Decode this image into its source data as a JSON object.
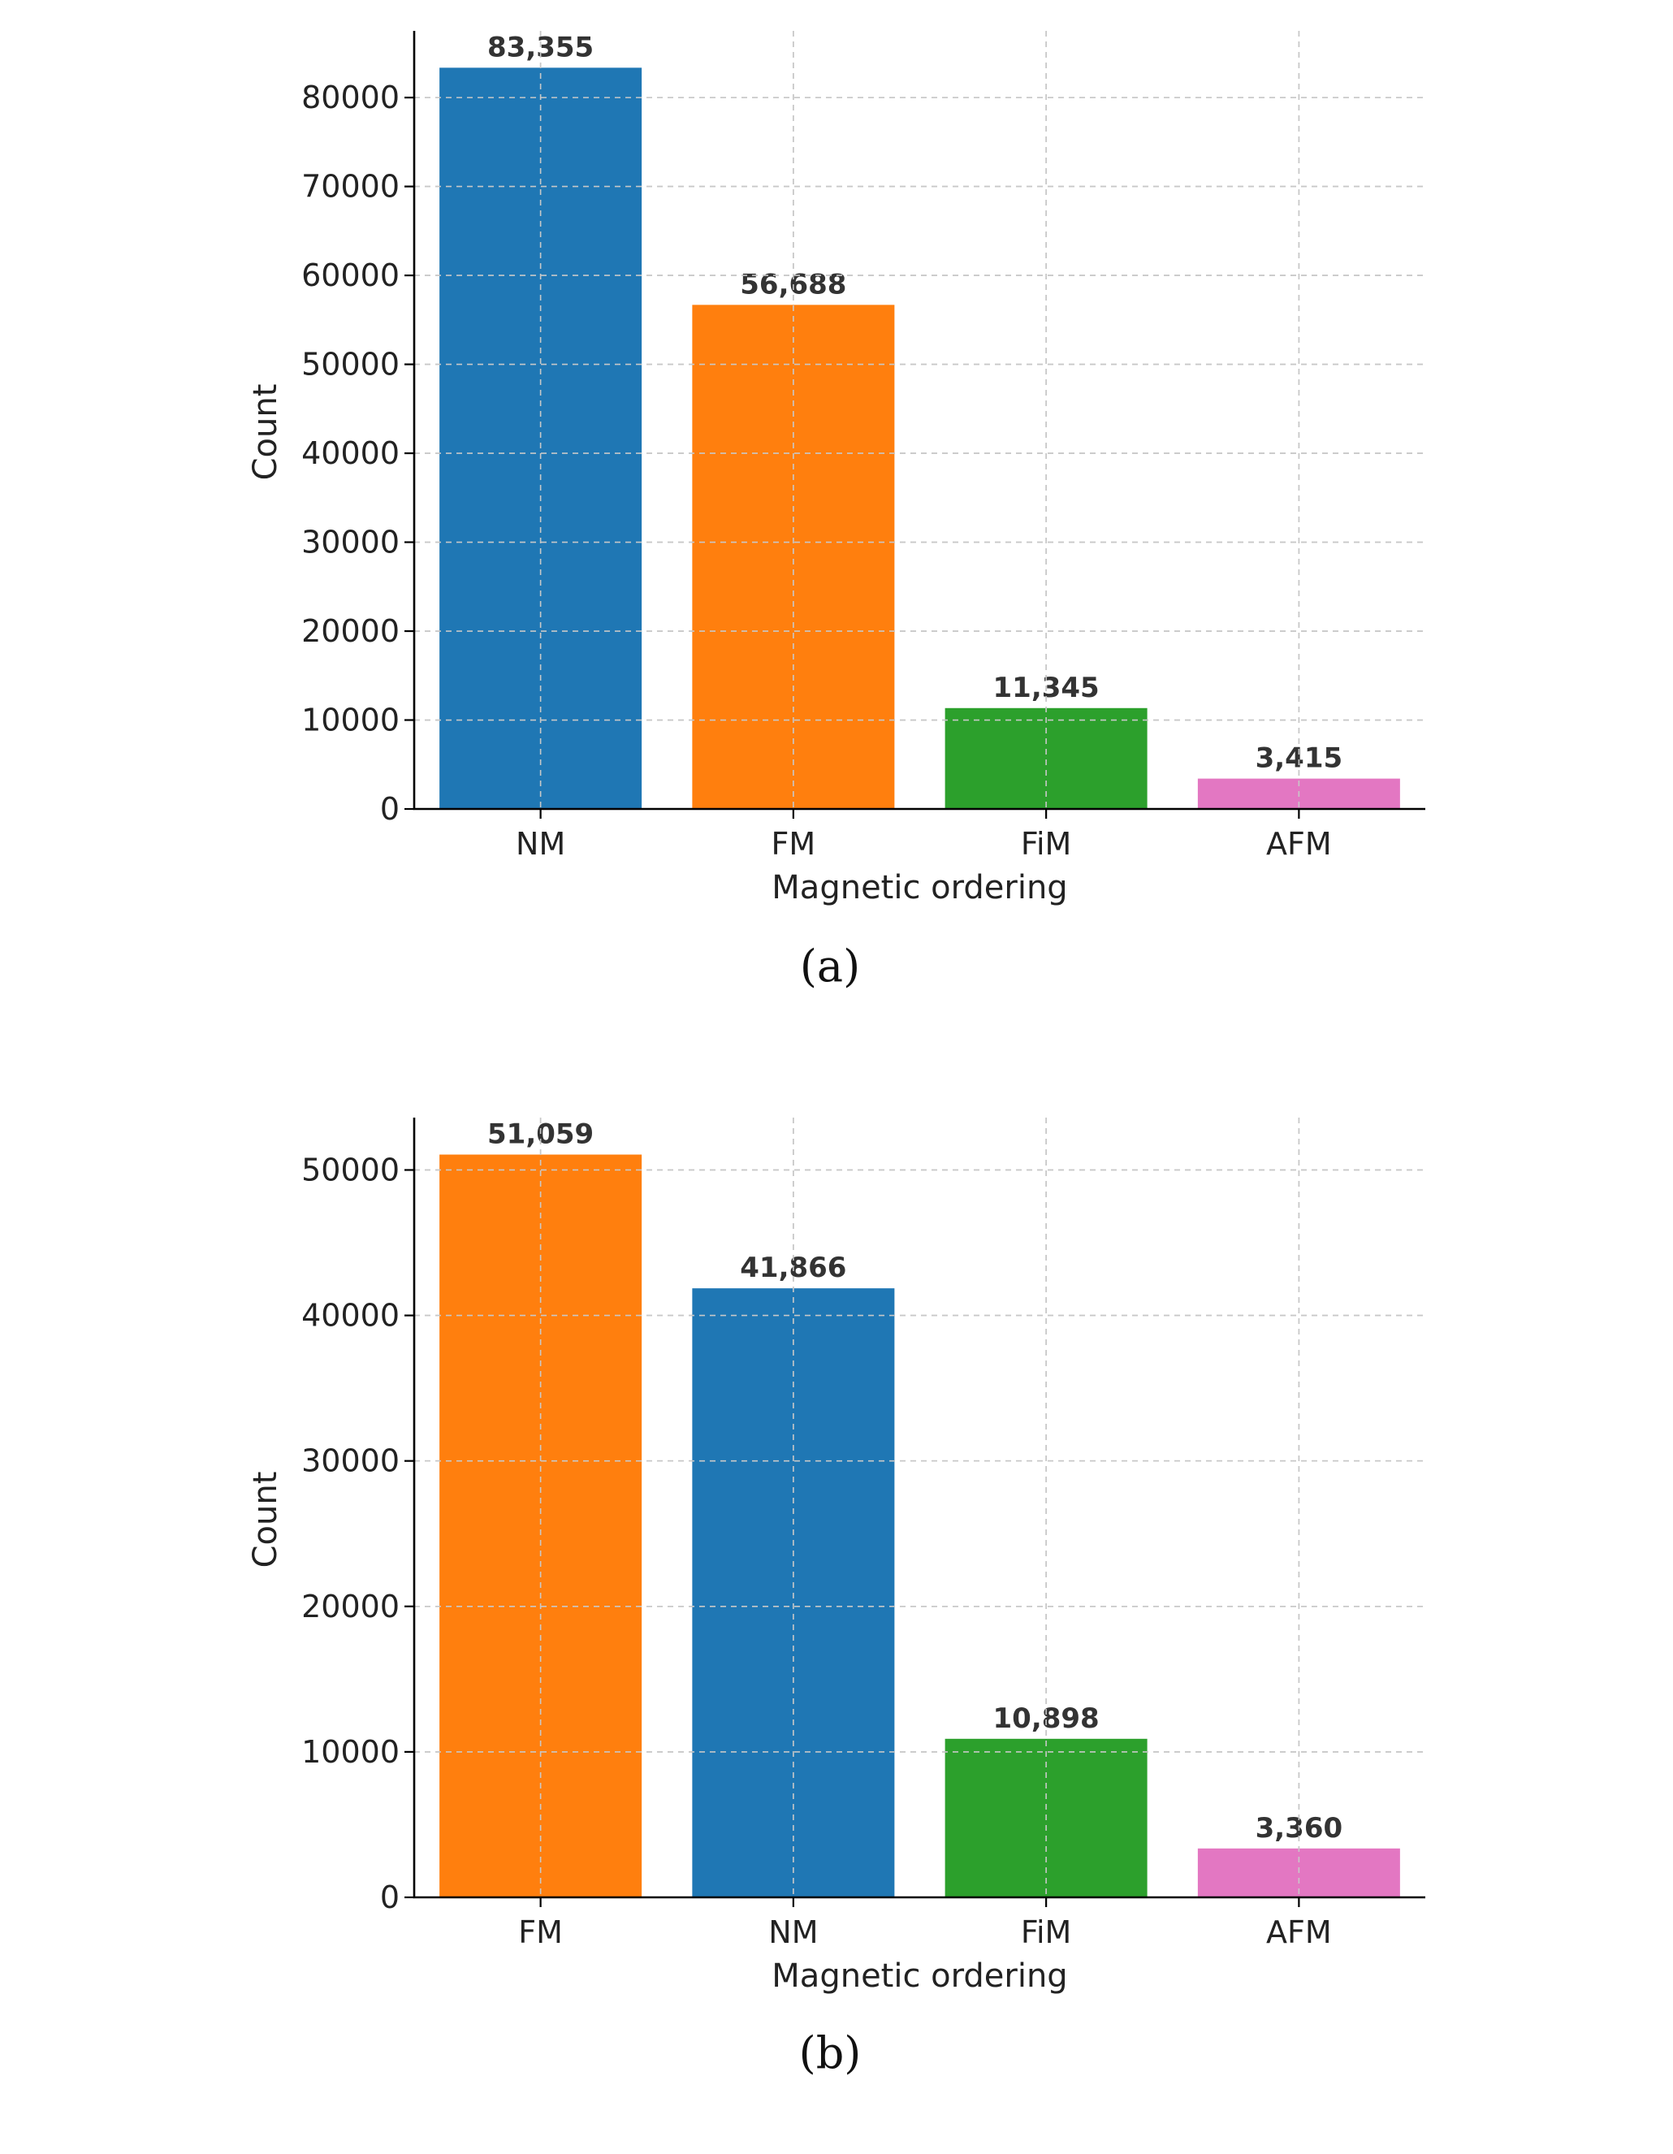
{
  "chart_data": [
    {
      "type": "bar",
      "caption": "(a)",
      "categories": [
        "NM",
        "FM",
        "FiM",
        "AFM"
      ],
      "values": [
        83355,
        56688,
        11345,
        3415
      ],
      "data_labels": [
        "83,355",
        "56,688",
        "11,345",
        "3,415"
      ],
      "colors": [
        "#1f77b4",
        "#ff7f0e",
        "#2ca02c",
        "#e377c2"
      ],
      "xlabel": "Magnetic ordering",
      "ylabel": "Count",
      "ylim": [
        0,
        87500
      ],
      "yticks": [
        0,
        10000,
        20000,
        30000,
        40000,
        50000,
        60000,
        70000,
        80000
      ],
      "ytick_labels": [
        "0",
        "10000",
        "20000",
        "30000",
        "40000",
        "50000",
        "60000",
        "70000",
        "80000"
      ],
      "grid": true,
      "legend": "none"
    },
    {
      "type": "bar",
      "caption": "(b)",
      "categories": [
        "FM",
        "NM",
        "FiM",
        "AFM"
      ],
      "values": [
        51059,
        41866,
        10898,
        3360
      ],
      "data_labels": [
        "51,059",
        "41,866",
        "10,898",
        "3,360"
      ],
      "colors": [
        "#ff7f0e",
        "#1f77b4",
        "#2ca02c",
        "#e377c2"
      ],
      "xlabel": "Magnetic ordering",
      "ylabel": "Count",
      "ylim": [
        0,
        53600
      ],
      "yticks": [
        0,
        10000,
        20000,
        30000,
        40000,
        50000
      ],
      "ytick_labels": [
        "0",
        "10000",
        "20000",
        "30000",
        "40000",
        "50000"
      ],
      "grid": true,
      "legend": "none"
    }
  ]
}
